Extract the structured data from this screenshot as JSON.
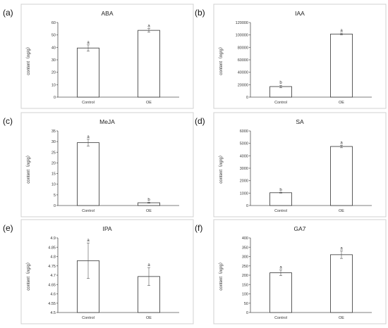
{
  "chart_data": [
    {
      "type": "bar",
      "panel_label": "(a)",
      "title": "ABA",
      "ylabel": "content（ng/g）",
      "categories": [
        "Control",
        "OE"
      ],
      "values": [
        39.5,
        53.7
      ],
      "errors": [
        2.5,
        1.5
      ],
      "significance": [
        "a",
        "a"
      ],
      "ylim": [
        0,
        60
      ],
      "yticks": [
        "0",
        "10",
        "20",
        "30",
        "40",
        "50",
        "60"
      ]
    },
    {
      "type": "bar",
      "panel_label": "(b)",
      "title": "IAA",
      "ylabel": "content（ng/g）",
      "categories": [
        "Control",
        "OE"
      ],
      "values": [
        17000,
        101500
      ],
      "errors": [
        2000,
        1500
      ],
      "significance": [
        "b",
        "a"
      ],
      "ylim": [
        0,
        120000
      ],
      "yticks": [
        "0",
        "20000",
        "40000",
        "60000",
        "80000",
        "100000",
        "120000"
      ]
    },
    {
      "type": "bar",
      "panel_label": "(c)",
      "title": "MeJA",
      "ylabel": "content（ng/g）",
      "categories": [
        "Control",
        "OE"
      ],
      "values": [
        29.5,
        1.3
      ],
      "errors": [
        1.6,
        0.2
      ],
      "significance": [
        "a",
        "b"
      ],
      "ylim": [
        0,
        35
      ],
      "yticks": [
        "0",
        "5",
        "10",
        "15",
        "20",
        "25",
        "30",
        "35"
      ]
    },
    {
      "type": "bar",
      "panel_label": "(d)",
      "title": "SA",
      "ylabel": "content（ng/g）",
      "categories": [
        "Control",
        "OE"
      ],
      "values": [
        1030,
        4750
      ],
      "errors": [
        30,
        100
      ],
      "significance": [
        "b",
        "a"
      ],
      "ylim": [
        0,
        6000
      ],
      "yticks": [
        "0",
        "1000",
        "2000",
        "3000",
        "4000",
        "5000",
        "6000"
      ]
    },
    {
      "type": "bar",
      "panel_label": "(e)",
      "title": "IPA",
      "ylabel": "content（ng/g）",
      "categories": [
        "Control",
        "OE"
      ],
      "values": [
        4.778,
        4.693
      ],
      "errors": [
        0.095,
        0.048
      ],
      "significance": [
        "a",
        "a"
      ],
      "ylim": [
        4.5,
        4.9
      ],
      "yticks": [
        "4.5",
        "4.55",
        "4.6",
        "4.65",
        "4.7",
        "4.75",
        "4.8",
        "4.85",
        "4.9"
      ]
    },
    {
      "type": "bar",
      "panel_label": "(f)",
      "title": "GA7",
      "ylabel": "content（ng/g）",
      "categories": [
        "Control",
        "OE"
      ],
      "values": [
        213,
        310
      ],
      "errors": [
        15,
        20
      ],
      "significance": [
        "a",
        "a"
      ],
      "ylim": [
        0,
        400
      ],
      "yticks": [
        "0",
        "50",
        "100",
        "150",
        "200",
        "250",
        "300",
        "350",
        "400"
      ]
    }
  ],
  "colors": {
    "bar_fill": "#ffffff",
    "bar_stroke": "#333333",
    "frame": "#d0d0d0"
  }
}
